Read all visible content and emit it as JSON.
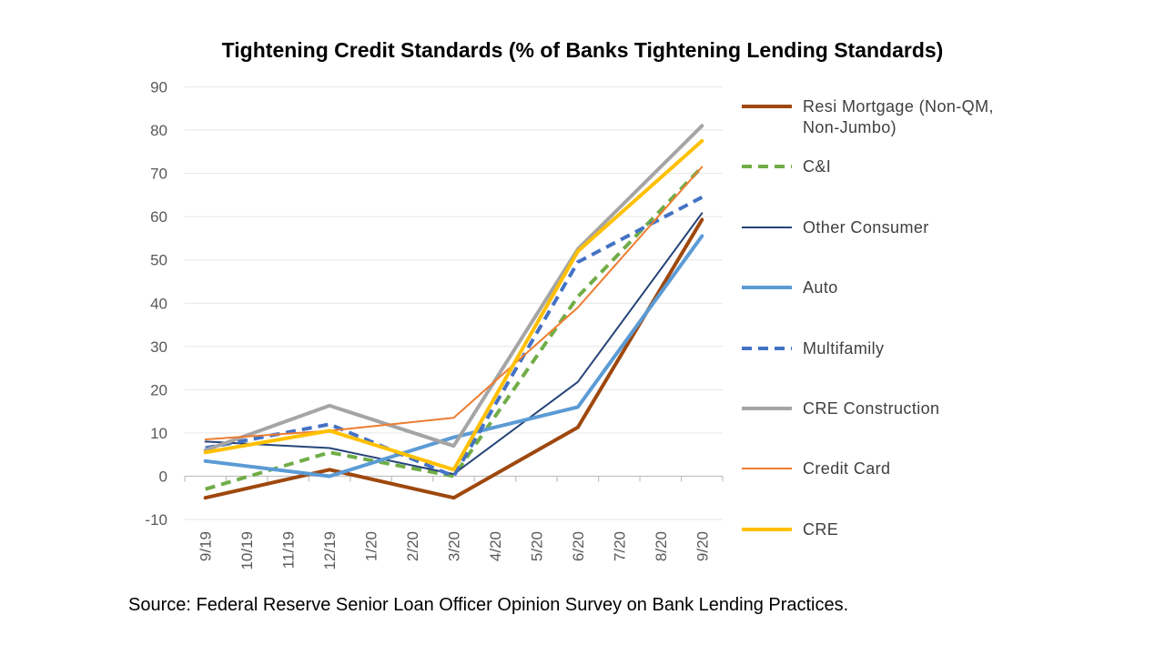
{
  "chart_data": {
    "type": "line",
    "title": "Tightening Credit Standards (% of Banks Tightening Lending Standards)",
    "source": "Source: Federal Reserve Senior Loan Officer Opinion Survey on Bank Lending Practices.",
    "xlabel": "",
    "ylabel": "",
    "ylim": [
      -10,
      90
    ],
    "yticks": [
      "-10",
      "0",
      "10",
      "20",
      "30",
      "40",
      "50",
      "60",
      "70",
      "80",
      "90"
    ],
    "grid": true,
    "legend_position": "right",
    "categories": [
      "9/19",
      "10/19",
      "11/19",
      "12/19",
      "1/20",
      "2/20",
      "3/20",
      "4/20",
      "5/20",
      "6/20",
      "7/20",
      "8/20",
      "9/20"
    ],
    "series": [
      {
        "name": "Resi Mortgage (Non-QM, Non-Jumbo)",
        "legend_lines": [
          "Resi Mortgage (Non-QM,",
          "Non-Jumbo)"
        ],
        "color": "#9E480E",
        "dash": "solid",
        "width": 4,
        "points": [
          [
            0,
            -5
          ],
          [
            3,
            1.5
          ],
          [
            6,
            -5
          ],
          [
            9,
            11.3
          ],
          [
            12,
            59.3
          ]
        ]
      },
      {
        "name": "C&I",
        "legend_lines": [
          "C&I"
        ],
        "color": "#70AD47",
        "dash": "dashed",
        "width": 4,
        "points": [
          [
            0,
            -3
          ],
          [
            3,
            5.5
          ],
          [
            6,
            0
          ],
          [
            9,
            41.5
          ],
          [
            12,
            71.5
          ]
        ]
      },
      {
        "name": "Other Consumer",
        "legend_lines": [
          "Other Consumer"
        ],
        "color": "#264478",
        "dash": "solid",
        "width": 2,
        "points": [
          [
            0,
            8
          ],
          [
            3,
            6.5
          ],
          [
            6,
            0.5
          ],
          [
            9,
            21.8
          ],
          [
            12,
            60.8
          ]
        ]
      },
      {
        "name": "Auto",
        "legend_lines": [
          "Auto"
        ],
        "color": "#5B9BD5",
        "dash": "solid",
        "width": 4,
        "points": [
          [
            0,
            3.5
          ],
          [
            3,
            0
          ],
          [
            6,
            9
          ],
          [
            9,
            16
          ],
          [
            12,
            55.5
          ]
        ]
      },
      {
        "name": "Multifamily",
        "legend_lines": [
          "Multifamily"
        ],
        "color": "#4472C4",
        "dash": "dashed",
        "width": 4,
        "points": [
          [
            0,
            6.5
          ],
          [
            3,
            12
          ],
          [
            6,
            0
          ],
          [
            9,
            49.5
          ],
          [
            12,
            64.5
          ]
        ]
      },
      {
        "name": "CRE Construction",
        "legend_lines": [
          "CRE Construction"
        ],
        "color": "#A5A5A5",
        "dash": "solid",
        "width": 4,
        "points": [
          [
            0,
            6
          ],
          [
            3,
            16.3
          ],
          [
            6,
            7
          ],
          [
            9,
            52.5
          ],
          [
            12,
            81
          ]
        ]
      },
      {
        "name": "Credit Card",
        "legend_lines": [
          "Credit Card"
        ],
        "color": "#ED7D31",
        "dash": "solid",
        "width": 2,
        "points": [
          [
            0,
            8.5
          ],
          [
            3,
            10.5
          ],
          [
            6,
            13.5
          ],
          [
            9,
            39
          ],
          [
            12,
            71.5
          ]
        ]
      },
      {
        "name": "CRE",
        "legend_lines": [
          "CRE"
        ],
        "color": "#FFC000",
        "dash": "solid",
        "width": 4,
        "points": [
          [
            0,
            5.5
          ],
          [
            3,
            10.5
          ],
          [
            6,
            1.5
          ],
          [
            9,
            52
          ],
          [
            12,
            77.5
          ]
        ]
      }
    ]
  }
}
